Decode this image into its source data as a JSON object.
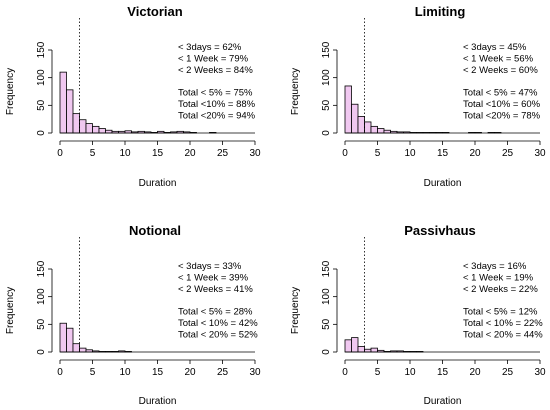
{
  "chart_data": [
    {
      "type": "bar",
      "title": "Victorian",
      "xlabel": "Duration",
      "ylabel": "Frequency",
      "xlim": [
        0,
        30
      ],
      "ylim": [
        0,
        150
      ],
      "xticks": [
        "0",
        "5",
        "10",
        "15",
        "20",
        "25",
        "30"
      ],
      "yticks": [
        "0",
        "50",
        "100",
        "150"
      ],
      "bin_width": 1,
      "threshold_line": 3,
      "values": [
        110,
        78,
        35,
        24,
        17,
        12,
        8,
        5,
        3,
        3,
        4,
        2,
        3,
        2,
        1,
        3,
        1,
        2,
        3,
        2,
        1,
        0,
        0,
        1
      ],
      "annotations": [
        "< 3days = 62%",
        "< 1 Week = 79%",
        "< 2 Weeks = 84%",
        "Total < 5% = 75%",
        "Total <10% = 88%",
        "Total <20% = 94%"
      ]
    },
    {
      "type": "bar",
      "title": "Limiting",
      "xlabel": "Duration",
      "ylabel": "Frequency",
      "xlim": [
        0,
        30
      ],
      "ylim": [
        0,
        150
      ],
      "xticks": [
        "0",
        "5",
        "10",
        "15",
        "20",
        "25",
        "30"
      ],
      "yticks": [
        "0",
        "50",
        "100",
        "150"
      ],
      "bin_width": 1,
      "threshold_line": 3,
      "values": [
        85,
        52,
        30,
        20,
        12,
        8,
        5,
        3,
        2,
        2,
        1,
        1,
        1,
        1,
        1,
        1,
        0,
        0,
        0,
        1,
        1,
        0,
        1,
        1
      ],
      "annotations": [
        "< 3days = 45%",
        "< 1 Week = 56%",
        "< 2 Weeks = 60%",
        "Total < 5% = 47%",
        "Total <10% = 60%",
        "Total <20% = 78%"
      ]
    },
    {
      "type": "bar",
      "title": "Notional",
      "xlabel": "Duration",
      "ylabel": "Frequency",
      "xlim": [
        0,
        30
      ],
      "ylim": [
        0,
        150
      ],
      "xticks": [
        "0",
        "5",
        "10",
        "15",
        "20",
        "25",
        "30"
      ],
      "yticks": [
        "0",
        "50",
        "100",
        "150"
      ],
      "bin_width": 1,
      "threshold_line": 3,
      "values": [
        52,
        43,
        15,
        7,
        4,
        2,
        1,
        1,
        1,
        2,
        1
      ],
      "annotations": [
        "< 3days = 33%",
        "< 1 Week = 39%",
        "< 2 Weeks = 41%",
        "Total < 5% = 28%",
        "Total < 10% = 42%",
        "Total < 20% = 52%"
      ]
    },
    {
      "type": "bar",
      "title": "Passivhaus",
      "xlabel": "Duration",
      "ylabel": "Frequency",
      "xlim": [
        0,
        30
      ],
      "ylim": [
        0,
        150
      ],
      "xticks": [
        "0",
        "5",
        "10",
        "15",
        "20",
        "25",
        "30"
      ],
      "yticks": [
        "0",
        "50",
        "100",
        "150"
      ],
      "bin_width": 1,
      "threshold_line": 3,
      "values": [
        22,
        26,
        10,
        5,
        7,
        3,
        1,
        2,
        2,
        1,
        1,
        1
      ],
      "annotations": [
        "< 3days = 16%",
        "< 1 Week = 19%",
        "< 2 Weeks = 22%",
        "Total < 5% = 12%",
        "Total < 10% = 22%",
        "Total < 20% = 44%"
      ]
    }
  ],
  "colors": {
    "bar_fill": "#f0c8f0",
    "bar_stroke": "#000000",
    "axis": "#000000",
    "threshold_line": "#000000"
  }
}
